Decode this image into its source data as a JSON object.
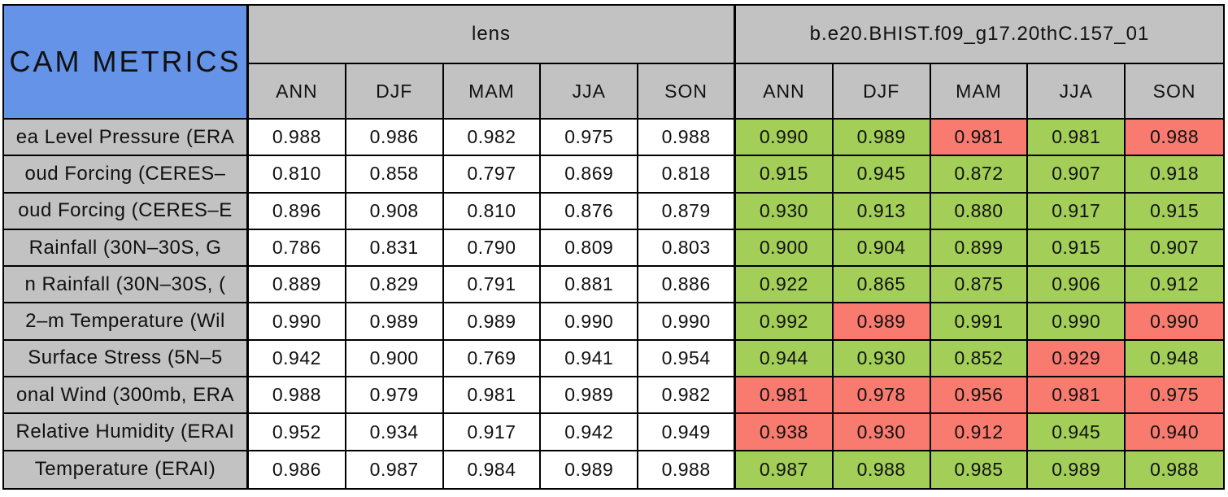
{
  "colors": {
    "title_bg": "#6593e7",
    "header_bg": "#c2c2c2",
    "cell_bg": "#ffffff",
    "improved": "#a3ce58",
    "degraded": "#f97b70",
    "border": "#000000",
    "text": "#111111"
  },
  "chart_data": {
    "type": "table",
    "title": "CAM METRICS",
    "column_groups": [
      "lens",
      "b.e20.BHIST.f09_g17.20thC.157_01"
    ],
    "columns": [
      "ANN",
      "DJF",
      "MAM",
      "JJA",
      "SON"
    ],
    "legend": {
      "improved_color": "#a3ce58",
      "degraded_color": "#f97b70"
    },
    "rows": [
      {
        "label": "ea Level Pressure (ERA",
        "lens": [
          "0.988",
          "0.986",
          "0.982",
          "0.975",
          "0.988"
        ],
        "case": [
          "0.990",
          "0.989",
          "0.981",
          "0.981",
          "0.988"
        ],
        "case_flags": [
          "g",
          "g",
          "r",
          "g",
          "r"
        ]
      },
      {
        "label": "oud Forcing (CERES–",
        "lens": [
          "0.810",
          "0.858",
          "0.797",
          "0.869",
          "0.818"
        ],
        "case": [
          "0.915",
          "0.945",
          "0.872",
          "0.907",
          "0.918"
        ],
        "case_flags": [
          "g",
          "g",
          "g",
          "g",
          "g"
        ]
      },
      {
        "label": "oud Forcing (CERES–E",
        "lens": [
          "0.896",
          "0.908",
          "0.810",
          "0.876",
          "0.879"
        ],
        "case": [
          "0.930",
          "0.913",
          "0.880",
          "0.917",
          "0.915"
        ],
        "case_flags": [
          "g",
          "g",
          "g",
          "g",
          "g"
        ]
      },
      {
        "label": "Rainfall (30N–30S, G",
        "lens": [
          "0.786",
          "0.831",
          "0.790",
          "0.809",
          "0.803"
        ],
        "case": [
          "0.900",
          "0.904",
          "0.899",
          "0.915",
          "0.907"
        ],
        "case_flags": [
          "g",
          "g",
          "g",
          "g",
          "g"
        ]
      },
      {
        "label": "n Rainfall (30N–30S, (",
        "lens": [
          "0.889",
          "0.829",
          "0.791",
          "0.881",
          "0.886"
        ],
        "case": [
          "0.922",
          "0.865",
          "0.875",
          "0.906",
          "0.912"
        ],
        "case_flags": [
          "g",
          "g",
          "g",
          "g",
          "g"
        ]
      },
      {
        "label": "2–m Temperature (Wil",
        "lens": [
          "0.990",
          "0.989",
          "0.989",
          "0.990",
          "0.990"
        ],
        "case": [
          "0.992",
          "0.989",
          "0.991",
          "0.990",
          "0.990"
        ],
        "case_flags": [
          "g",
          "r",
          "g",
          "g",
          "r"
        ]
      },
      {
        "label": "Surface Stress (5N–5",
        "lens": [
          "0.942",
          "0.900",
          "0.769",
          "0.941",
          "0.954"
        ],
        "case": [
          "0.944",
          "0.930",
          "0.852",
          "0.929",
          "0.948"
        ],
        "case_flags": [
          "g",
          "g",
          "g",
          "r",
          "g"
        ]
      },
      {
        "label": "onal Wind (300mb, ERA",
        "lens": [
          "0.988",
          "0.979",
          "0.981",
          "0.989",
          "0.982"
        ],
        "case": [
          "0.981",
          "0.978",
          "0.956",
          "0.981",
          "0.975"
        ],
        "case_flags": [
          "r",
          "r",
          "r",
          "r",
          "r"
        ]
      },
      {
        "label": "Relative Humidity (ERAI",
        "lens": [
          "0.952",
          "0.934",
          "0.917",
          "0.942",
          "0.949"
        ],
        "case": [
          "0.938",
          "0.930",
          "0.912",
          "0.945",
          "0.940"
        ],
        "case_flags": [
          "r",
          "r",
          "r",
          "g",
          "r"
        ]
      },
      {
        "label": "Temperature (ERAI)",
        "lens": [
          "0.986",
          "0.987",
          "0.984",
          "0.989",
          "0.988"
        ],
        "case": [
          "0.987",
          "0.988",
          "0.985",
          "0.989",
          "0.988"
        ],
        "case_flags": [
          "g",
          "g",
          "g",
          "g",
          "g"
        ]
      }
    ]
  }
}
